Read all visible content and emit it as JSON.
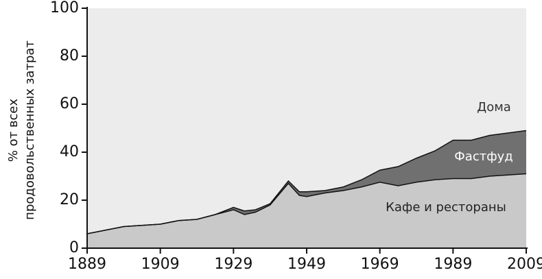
{
  "chart_data": {
    "type": "stacked_area",
    "y_label": [
      "% от всех",
      "продовольственных затрат"
    ],
    "x": [
      1889,
      1894,
      1899,
      1904,
      1909,
      1914,
      1919,
      1924,
      1929,
      1932,
      1935,
      1939,
      1944,
      1947,
      1949,
      1954,
      1959,
      1964,
      1969,
      1974,
      1979,
      1984,
      1989,
      1994,
      1999,
      2004,
      2009
    ],
    "series": [
      {
        "name": "Кафе и рестораны",
        "color": "#c9c9c9",
        "label_color": "#222222",
        "values": [
          6,
          7.5,
          9,
          9.5,
          10,
          11.5,
          12,
          14,
          16,
          14,
          15,
          18,
          27,
          22,
          21.5,
          23,
          24,
          25.5,
          27.5,
          26,
          27.5,
          28.5,
          29,
          29,
          30,
          30.5,
          31
        ]
      },
      {
        "name": "Фастфуд",
        "color": "#707070",
        "label_color": "#ffffff",
        "values": [
          0,
          0,
          0,
          0,
          0,
          0,
          0,
          0,
          1,
          1.5,
          1,
          0.5,
          1,
          1.5,
          2,
          1,
          1.5,
          3,
          5,
          8,
          10,
          12,
          16,
          16,
          17,
          17.5,
          18
        ]
      },
      {
        "name": "Дома",
        "color": "#ececec",
        "label_color": "#333333",
        "values": [
          94,
          92.5,
          91,
          90.5,
          90,
          88.5,
          88,
          86,
          83,
          84.5,
          84,
          81.5,
          72,
          76.5,
          76.5,
          76,
          74.5,
          71.5,
          67.5,
          66,
          62.5,
          59.5,
          55,
          55,
          53,
          52,
          51
        ]
      }
    ],
    "xlim": [
      1889,
      2009
    ],
    "xticks": [
      1889,
      1909,
      1929,
      1949,
      1969,
      1989,
      2009
    ],
    "ylim": [
      0,
      100
    ],
    "yticks": [
      0,
      20,
      40,
      60,
      80,
      100
    ]
  }
}
